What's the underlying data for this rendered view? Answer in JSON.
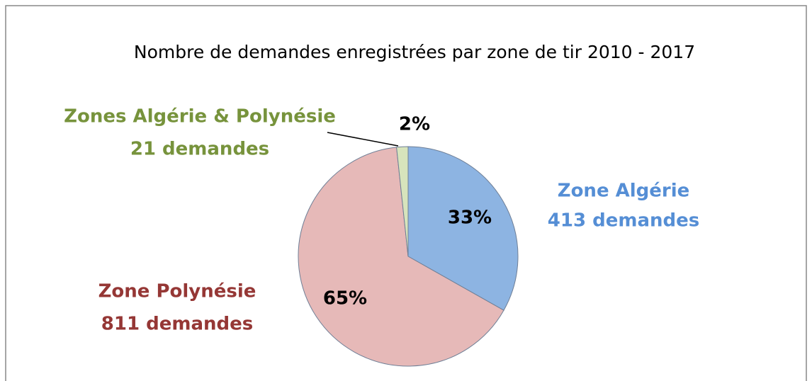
{
  "chart_data": {
    "type": "pie",
    "title": "Nombre de demandes enregistrées par zone de tir   2010 - 2017",
    "categories": [
      "Zone Algérie",
      "Zone Polynésie",
      "Zones Algérie & Polynésie"
    ],
    "values": [
      413,
      811,
      21
    ],
    "value_labels": [
      "413 demandes",
      "811 demandes",
      "21 demandes"
    ],
    "percent_labels": [
      "33%",
      "65%",
      "2%"
    ],
    "colors": [
      "#8db4e2",
      "#e6b9b8",
      "#d7e4bc"
    ],
    "label_colors": [
      "#558ed5",
      "#953735",
      "#77933c"
    ]
  }
}
